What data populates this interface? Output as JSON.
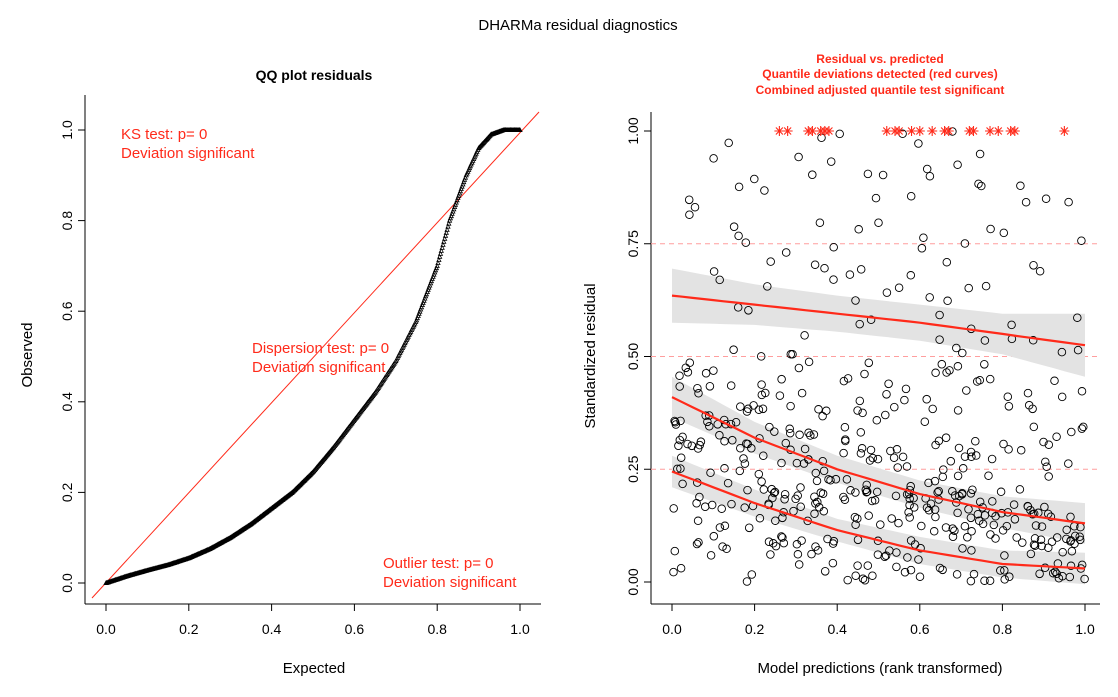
{
  "main_title": "DHARMa residual diagnostics",
  "colors": {
    "axis": "#000000",
    "accent": "#ff2a1a",
    "band": "#e3e3e3",
    "ref_line": "#ff9e9e"
  },
  "chart_data": [
    {
      "type": "scatter",
      "title": "QQ plot residuals",
      "xlabel": "Expected",
      "ylabel": "Observed",
      "xlim": [
        0,
        1
      ],
      "ylim": [
        0,
        1
      ],
      "xticks": [
        "0.0",
        "0.2",
        "0.4",
        "0.6",
        "0.8",
        "1.0"
      ],
      "yticks": [
        "0.0",
        "0.2",
        "0.4",
        "0.6",
        "0.8",
        "1.0"
      ],
      "reference_line": {
        "from": [
          0,
          0
        ],
        "to": [
          1,
          1
        ]
      },
      "qq_curve": [
        [
          0,
          0
        ],
        [
          0.05,
          0.015
        ],
        [
          0.1,
          0.028
        ],
        [
          0.15,
          0.04
        ],
        [
          0.2,
          0.055
        ],
        [
          0.25,
          0.075
        ],
        [
          0.3,
          0.1
        ],
        [
          0.35,
          0.13
        ],
        [
          0.4,
          0.165
        ],
        [
          0.45,
          0.2
        ],
        [
          0.5,
          0.245
        ],
        [
          0.55,
          0.3
        ],
        [
          0.6,
          0.36
        ],
        [
          0.65,
          0.42
        ],
        [
          0.7,
          0.49
        ],
        [
          0.75,
          0.58
        ],
        [
          0.8,
          0.7
        ],
        [
          0.83,
          0.8
        ],
        [
          0.85,
          0.85
        ],
        [
          0.87,
          0.9
        ],
        [
          0.9,
          0.96
        ],
        [
          0.93,
          0.99
        ],
        [
          0.96,
          1.0
        ],
        [
          1.0,
          1.0
        ]
      ],
      "annotations": [
        {
          "lines": [
            "KS test: p= 0",
            "Deviation  significant"
          ]
        },
        {
          "lines": [
            "Dispersion test: p= 0",
            "Deviation  significant"
          ]
        },
        {
          "lines": [
            "Outlier test: p= 0",
            "Deviation  significant"
          ]
        }
      ]
    },
    {
      "type": "scatter",
      "title_lines": [
        "Residual vs. predicted",
        "Quantile deviations detected (red curves)",
        "Combined adjusted quantile test significant"
      ],
      "xlabel": "Model predictions (rank transformed)",
      "ylabel": "Standardized residual",
      "xlim": [
        0,
        1
      ],
      "ylim": [
        0,
        1
      ],
      "xticks": [
        "0.0",
        "0.2",
        "0.4",
        "0.6",
        "0.8",
        "1.0"
      ],
      "yticks": [
        "0.00",
        "0.25",
        "0.50",
        "0.75",
        "1.00"
      ],
      "reference_quantiles": [
        0.25,
        0.5,
        0.75
      ],
      "point_count": 500,
      "outlier_x": [
        0.26,
        0.28,
        0.33,
        0.34,
        0.36,
        0.37,
        0.38,
        0.52,
        0.54,
        0.55,
        0.58,
        0.6,
        0.63,
        0.66,
        0.67,
        0.72,
        0.73,
        0.77,
        0.79,
        0.82,
        0.83,
        0.95
      ],
      "quantile_fits": [
        {
          "quantile": 0.25,
          "x": [
            0,
            0.2,
            0.4,
            0.6,
            0.8,
            1.0
          ],
          "y": [
            0.245,
            0.175,
            0.115,
            0.07,
            0.04,
            0.03
          ],
          "band": [
            0.035,
            0.03,
            0.025,
            0.03,
            0.03,
            0.035
          ]
        },
        {
          "quantile": 0.5,
          "x": [
            0,
            0.2,
            0.4,
            0.6,
            0.8,
            1.0
          ],
          "y": [
            0.41,
            0.32,
            0.25,
            0.195,
            0.155,
            0.13
          ],
          "band": [
            0.045,
            0.035,
            0.03,
            0.03,
            0.035,
            0.045
          ]
        },
        {
          "quantile": 0.75,
          "x": [
            0,
            0.2,
            0.4,
            0.6,
            0.8,
            1.0
          ],
          "y": [
            0.635,
            0.615,
            0.595,
            0.575,
            0.55,
            0.525
          ],
          "band": [
            0.06,
            0.045,
            0.04,
            0.04,
            0.045,
            0.07
          ]
        }
      ]
    }
  ]
}
